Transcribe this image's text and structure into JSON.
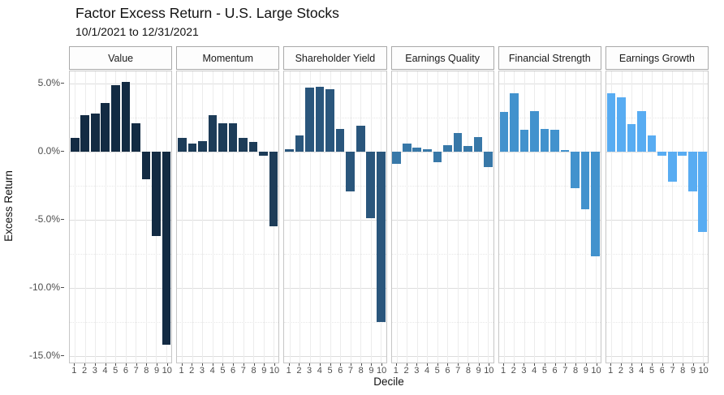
{
  "header": {
    "title": "Factor Excess Return - U.S. Large Stocks",
    "subtitle": "10/1/2021 to 12/31/2021"
  },
  "chart_data": {
    "type": "bar",
    "title": "Factor Excess Return - U.S. Large Stocks",
    "subtitle": "10/1/2021 to 12/31/2021",
    "xlabel": "Decile",
    "ylabel": "Excess Return",
    "categories": [
      "1",
      "2",
      "3",
      "4",
      "5",
      "6",
      "7",
      "8",
      "9",
      "10"
    ],
    "ylim": [
      -15.5,
      5.9
    ],
    "grid": true,
    "legend": "none",
    "y_ticks": [
      {
        "value": 5,
        "label": "5.0%"
      },
      {
        "value": 0,
        "label": "0.0%"
      },
      {
        "value": -5,
        "label": "-5.0%"
      },
      {
        "value": -10,
        "label": "-10.0%"
      },
      {
        "value": -15,
        "label": "-15.0%"
      }
    ],
    "y_minor_ticks": [
      2.5,
      -2.5,
      -7.5,
      -12.5
    ],
    "facets": [
      {
        "label": "Value",
        "color": "#132B43",
        "values": [
          1.0,
          2.7,
          2.8,
          3.6,
          4.9,
          5.1,
          2.1,
          -2.0,
          -6.2,
          -14.2
        ]
      },
      {
        "label": "Momentum",
        "color": "#1D3C58",
        "values": [
          1.0,
          0.6,
          0.8,
          2.7,
          2.1,
          2.1,
          1.0,
          0.7,
          -0.3,
          -5.5
        ]
      },
      {
        "label": "Shareholder Yield",
        "color": "#2A567C",
        "values": [
          0.2,
          1.2,
          4.7,
          4.8,
          4.6,
          1.7,
          -2.9,
          1.9,
          -4.9,
          -12.5
        ]
      },
      {
        "label": "Earnings Quality",
        "color": "#3878A8",
        "values": [
          -0.9,
          0.6,
          0.3,
          0.2,
          -0.8,
          0.5,
          1.4,
          0.4,
          1.1,
          -1.1
        ]
      },
      {
        "label": "Financial Strength",
        "color": "#4292CD",
        "values": [
          2.9,
          4.3,
          1.6,
          3.0,
          1.7,
          1.6,
          0.1,
          -2.7,
          -4.2,
          -7.7
        ]
      },
      {
        "label": "Earnings Growth",
        "color": "#58ACF2",
        "values": [
          4.3,
          4.0,
          2.0,
          3.0,
          1.2,
          -0.3,
          -2.2,
          -0.3,
          -2.9,
          -5.9
        ]
      }
    ]
  }
}
